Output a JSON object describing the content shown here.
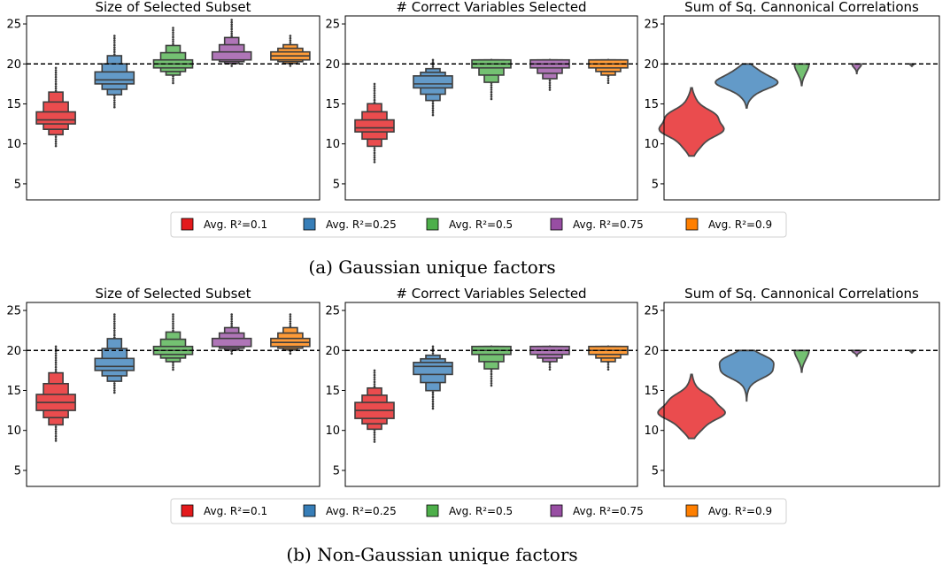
{
  "palette": [
    "#e41a1c",
    "#377eb8",
    "#4daf4a",
    "#984ea3",
    "#ff7f00"
  ],
  "legend_labels": [
    "Avg. R²=0.1",
    "Avg. R²=0.25",
    "Avg. R²=0.5",
    "Avg. R²=0.75",
    "Avg. R²=0.9"
  ],
  "captions": [
    "(a) Gaussian unique factors",
    "(b) Non-Gaussian unique factors"
  ],
  "chart_data": [
    {
      "type": "boxen",
      "title": "Size of Selected Subset",
      "ylim": [
        3,
        26
      ],
      "yticks": [
        5,
        10,
        15,
        20,
        25
      ],
      "reference_line": 20,
      "series": [
        {
          "label": "Avg. R²=0.1",
          "median": 13,
          "box": [
            12.5,
            14
          ],
          "range": [
            9.5,
            19.5
          ]
        },
        {
          "label": "Avg. R²=0.25",
          "median": 18,
          "box": [
            17.5,
            19
          ],
          "range": [
            14.5,
            23.5
          ]
        },
        {
          "label": "Avg. R²=0.5",
          "median": 20,
          "box": [
            19.5,
            20.5
          ],
          "range": [
            17.5,
            24.5
          ]
        },
        {
          "label": "Avg. R²=0.75",
          "median": 20.5,
          "box": [
            20.5,
            21.5
          ],
          "range": [
            19.5,
            25.5
          ]
        },
        {
          "label": "Avg. R²=0.9",
          "median": 21,
          "box": [
            20.5,
            21.5
          ],
          "range": [
            19.5,
            23.5
          ]
        }
      ]
    },
    {
      "type": "boxen",
      "title": "# Correct Variables Selected",
      "ylim": [
        3,
        26
      ],
      "yticks": [
        5,
        10,
        15,
        20,
        25
      ],
      "reference_line": 20,
      "series": [
        {
          "label": "Avg. R²=0.1",
          "median": 12,
          "box": [
            11.5,
            13
          ],
          "range": [
            7.5,
            17.5
          ]
        },
        {
          "label": "Avg. R²=0.25",
          "median": 17.5,
          "box": [
            17,
            18.5
          ],
          "range": [
            13.5,
            20.5
          ]
        },
        {
          "label": "Avg. R²=0.5",
          "median": 20,
          "box": [
            19.5,
            20.5
          ],
          "range": [
            15.5,
            20.5
          ]
        },
        {
          "label": "Avg. R²=0.75",
          "median": 20,
          "box": [
            19.5,
            20.5
          ],
          "range": [
            16.5,
            20.5
          ]
        },
        {
          "label": "Avg. R²=0.9",
          "median": 20,
          "box": [
            19.5,
            20.5
          ],
          "range": [
            17.5,
            20.5
          ]
        }
      ]
    },
    {
      "type": "violin",
      "title": "Sum of Sq. Cannonical Correlations",
      "ylim": [
        3,
        26
      ],
      "yticks": [
        5,
        10,
        15,
        20,
        25
      ],
      "reference_line": 20,
      "series": [
        {
          "label": "Avg. R²=0.1",
          "center": 12.3,
          "range": [
            8.5,
            17
          ]
        },
        {
          "label": "Avg. R²=0.25",
          "center": 17.8,
          "range": [
            14.5,
            20
          ]
        },
        {
          "label": "Avg. R²=0.5",
          "center": 19.7,
          "range": [
            17.3,
            20
          ]
        },
        {
          "label": "Avg. R²=0.75",
          "center": 19.95,
          "range": [
            18.8,
            20
          ]
        },
        {
          "label": "Avg. R²=0.9",
          "center": 19.98,
          "range": [
            19.7,
            20
          ]
        }
      ]
    },
    {
      "type": "boxen",
      "title": "Size of Selected Subset",
      "ylim": [
        3,
        26
      ],
      "yticks": [
        5,
        10,
        15,
        20,
        25
      ],
      "reference_line": 20,
      "series": [
        {
          "label": "Avg. R²=0.1",
          "median": 13.5,
          "box": [
            12.5,
            14.5
          ],
          "range": [
            8.5,
            20.5
          ]
        },
        {
          "label": "Avg. R²=0.25",
          "median": 18,
          "box": [
            17.5,
            19
          ],
          "range": [
            14.5,
            24.5
          ]
        },
        {
          "label": "Avg. R²=0.5",
          "median": 20,
          "box": [
            19.5,
            20.5
          ],
          "range": [
            17.5,
            24.5
          ]
        },
        {
          "label": "Avg. R²=0.75",
          "median": 20.5,
          "box": [
            20.5,
            21.5
          ],
          "range": [
            19.5,
            24.5
          ]
        },
        {
          "label": "Avg. R²=0.9",
          "median": 21,
          "box": [
            20.5,
            21.5
          ],
          "range": [
            19.5,
            24.5
          ]
        }
      ]
    },
    {
      "type": "boxen",
      "title": "# Correct Variables Selected",
      "ylim": [
        3,
        26
      ],
      "yticks": [
        5,
        10,
        15,
        20,
        25
      ],
      "reference_line": 20,
      "series": [
        {
          "label": "Avg. R²=0.1",
          "median": 12.5,
          "box": [
            11.5,
            13.5
          ],
          "range": [
            8.5,
            17.5
          ]
        },
        {
          "label": "Avg. R²=0.25",
          "median": 18,
          "box": [
            17,
            18.5
          ],
          "range": [
            12.5,
            20.5
          ]
        },
        {
          "label": "Avg. R²=0.5",
          "median": 20,
          "box": [
            19.5,
            20.5
          ],
          "range": [
            15.5,
            20.5
          ]
        },
        {
          "label": "Avg. R²=0.75",
          "median": 20,
          "box": [
            19.5,
            20.5
          ],
          "range": [
            17.5,
            20.5
          ]
        },
        {
          "label": "Avg. R²=0.9",
          "median": 20,
          "box": [
            19.5,
            20.5
          ],
          "range": [
            17.5,
            20.5
          ]
        }
      ]
    },
    {
      "type": "violin",
      "title": "Sum of Sq. Cannonical Correlations",
      "ylim": [
        3,
        26
      ],
      "yticks": [
        5,
        10,
        15,
        20,
        25
      ],
      "reference_line": 20,
      "series": [
        {
          "label": "Avg. R²=0.1",
          "center": 12.5,
          "range": [
            9,
            17
          ]
        },
        {
          "label": "Avg. R²=0.25",
          "center": 18,
          "range": [
            13.7,
            20
          ]
        },
        {
          "label": "Avg. R²=0.5",
          "center": 19.75,
          "range": [
            17.3,
            20
          ]
        },
        {
          "label": "Avg. R²=0.75",
          "center": 19.95,
          "range": [
            19.3,
            20
          ]
        },
        {
          "label": "Avg. R²=0.9",
          "center": 19.98,
          "range": [
            19.7,
            20
          ]
        }
      ]
    }
  ]
}
